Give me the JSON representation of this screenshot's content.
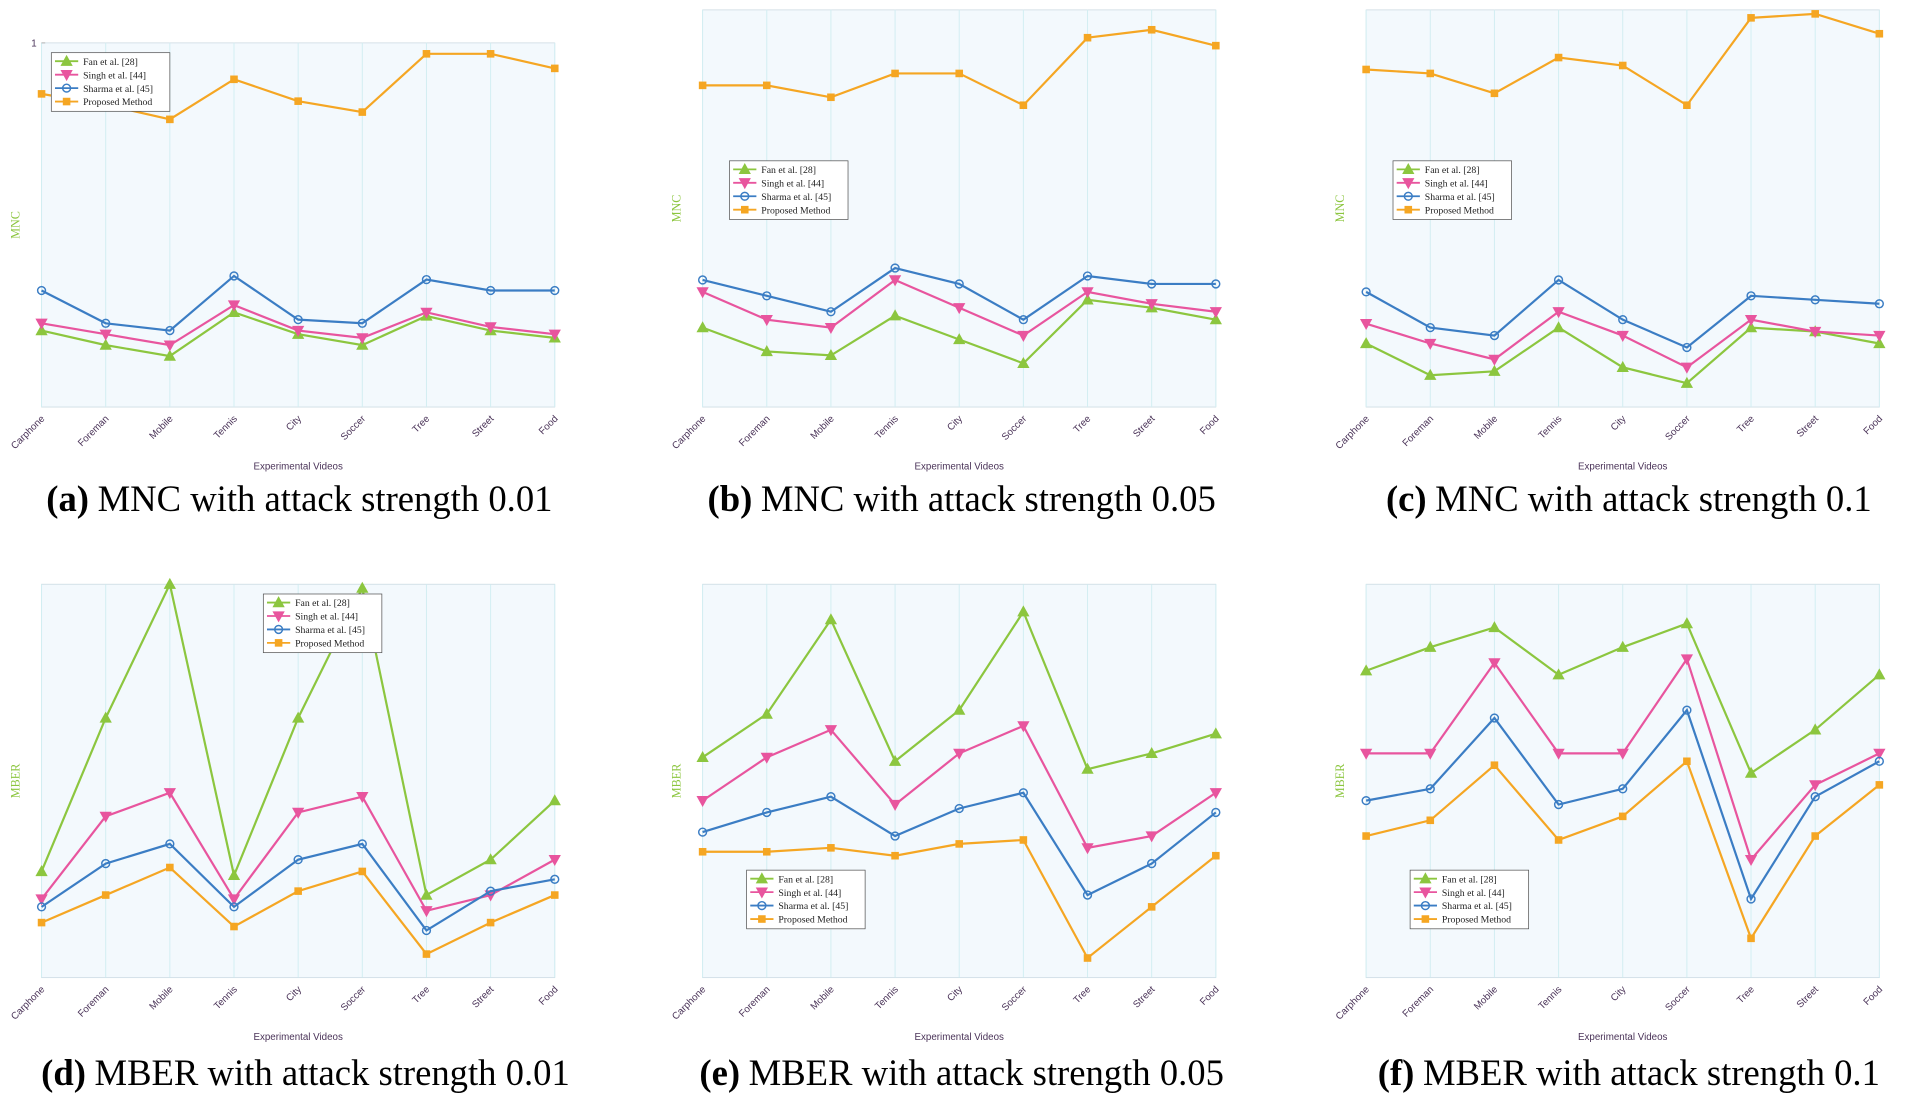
{
  "chart_data": [
    {
      "type": "line",
      "caption_label": "(a)",
      "caption": "MNC with attack strength 0.01",
      "xlabel": "Experimental Videos",
      "ylabel": "MNC",
      "categories": [
        "Carphone",
        "Foreman",
        "Mobile",
        "Tennis",
        "City",
        "Soccer",
        "Tree",
        "Street",
        "Food"
      ],
      "ylim": [
        0,
        1
      ],
      "yticks": [
        1
      ],
      "grid": true,
      "legend": "upper left",
      "series": [
        {
          "name": "Fan et al. [28]",
          "color": "#8cc63f",
          "marker": "triangle-up",
          "values": [
            0.21,
            0.17,
            0.14,
            0.26,
            0.2,
            0.17,
            0.25,
            0.21,
            0.19
          ]
        },
        {
          "name": "Singh et al. [44]",
          "color": "#e8559e",
          "marker": "triangle-down",
          "values": [
            0.23,
            0.2,
            0.17,
            0.28,
            0.21,
            0.19,
            0.26,
            0.22,
            0.2
          ]
        },
        {
          "name": "Sharma et al. [45]",
          "color": "#3b7dc4",
          "marker": "circle",
          "values": [
            0.32,
            0.23,
            0.21,
            0.36,
            0.24,
            0.23,
            0.35,
            0.32,
            0.32
          ]
        },
        {
          "name": "Proposed Method",
          "color": "#f5a623",
          "marker": "square",
          "values": [
            0.86,
            0.83,
            0.79,
            0.9,
            0.84,
            0.81,
            0.97,
            0.97,
            0.93
          ]
        }
      ]
    },
    {
      "type": "line",
      "caption_label": "(b)",
      "caption": "MNC with attack strength 0.05",
      "xlabel": "Experimental Videos",
      "ylabel": "MNC",
      "categories": [
        "Carphone",
        "Foreman",
        "Mobile",
        "Tennis",
        "City",
        "Soccer",
        "Tree",
        "Street",
        "Food"
      ],
      "ylim": [
        0,
        1
      ],
      "yticks": [],
      "grid": true,
      "legend": "center left",
      "series": [
        {
          "name": "Fan et al. [28]",
          "color": "#8cc63f",
          "marker": "triangle-up",
          "values": [
            0.2,
            0.14,
            0.13,
            0.23,
            0.17,
            0.11,
            0.27,
            0.25,
            0.22
          ]
        },
        {
          "name": "Singh et al. [44]",
          "color": "#e8559e",
          "marker": "triangle-down",
          "values": [
            0.29,
            0.22,
            0.2,
            0.32,
            0.25,
            0.18,
            0.29,
            0.26,
            0.24
          ]
        },
        {
          "name": "Sharma et al. [45]",
          "color": "#3b7dc4",
          "marker": "circle",
          "values": [
            0.32,
            0.28,
            0.24,
            0.35,
            0.31,
            0.22,
            0.33,
            0.31,
            0.31
          ]
        },
        {
          "name": "Proposed Method",
          "color": "#f5a623",
          "marker": "square",
          "values": [
            0.81,
            0.81,
            0.78,
            0.84,
            0.84,
            0.76,
            0.93,
            0.95,
            0.91
          ]
        }
      ]
    },
    {
      "type": "line",
      "caption_label": "(c)",
      "caption": "MNC with attack strength 0.1",
      "xlabel": "Experimental Videos",
      "ylabel": "MNC",
      "categories": [
        "Carphone",
        "Foreman",
        "Mobile",
        "Tennis",
        "City",
        "Soccer",
        "Tree",
        "Street",
        "Food"
      ],
      "ylim": [
        0,
        1
      ],
      "yticks": [],
      "grid": true,
      "legend": "center left",
      "series": [
        {
          "name": "Fan et al. [28]",
          "color": "#8cc63f",
          "marker": "triangle-up",
          "values": [
            0.16,
            0.08,
            0.09,
            0.2,
            0.1,
            0.06,
            0.2,
            0.19,
            0.16
          ]
        },
        {
          "name": "Singh et al. [44]",
          "color": "#e8559e",
          "marker": "triangle-down",
          "values": [
            0.21,
            0.16,
            0.12,
            0.24,
            0.18,
            0.1,
            0.22,
            0.19,
            0.18
          ]
        },
        {
          "name": "Sharma et al. [45]",
          "color": "#3b7dc4",
          "marker": "circle",
          "values": [
            0.29,
            0.2,
            0.18,
            0.32,
            0.22,
            0.15,
            0.28,
            0.27,
            0.26
          ]
        },
        {
          "name": "Proposed Method",
          "color": "#f5a623",
          "marker": "square",
          "values": [
            0.85,
            0.84,
            0.79,
            0.88,
            0.86,
            0.76,
            0.98,
            0.99,
            0.94
          ]
        }
      ]
    },
    {
      "type": "line",
      "caption_label": "(d)",
      "caption": "MBER with attack strength 0.01",
      "xlabel": "Experimental Videos",
      "ylabel": "MBER",
      "categories": [
        "Carphone",
        "Foreman",
        "Mobile",
        "Tennis",
        "City",
        "Soccer",
        "Tree",
        "Street",
        "Food"
      ],
      "ylim": [
        0,
        1
      ],
      "yticks": [],
      "grid": true,
      "legend": "upper center",
      "series": [
        {
          "name": "Fan et al. [28]",
          "color": "#8cc63f",
          "marker": "triangle-up",
          "values": [
            0.27,
            0.66,
            1.0,
            0.26,
            0.66,
            0.99,
            0.21,
            0.3,
            0.45
          ]
        },
        {
          "name": "Singh et al. [44]",
          "color": "#e8559e",
          "marker": "triangle-down",
          "values": [
            0.2,
            0.41,
            0.47,
            0.2,
            0.42,
            0.46,
            0.17,
            0.21,
            0.3
          ]
        },
        {
          "name": "Sharma et al. [45]",
          "color": "#3b7dc4",
          "marker": "circle",
          "values": [
            0.18,
            0.29,
            0.34,
            0.18,
            0.3,
            0.34,
            0.12,
            0.22,
            0.25
          ]
        },
        {
          "name": "Proposed Method",
          "color": "#f5a623",
          "marker": "square",
          "values": [
            0.14,
            0.21,
            0.28,
            0.13,
            0.22,
            0.27,
            0.06,
            0.14,
            0.21
          ]
        }
      ]
    },
    {
      "type": "line",
      "caption_label": "(e)",
      "caption": "MBER with attack strength 0.05",
      "xlabel": "Experimental Videos",
      "ylabel": "MBER",
      "categories": [
        "Carphone",
        "Foreman",
        "Mobile",
        "Tennis",
        "City",
        "Soccer",
        "Tree",
        "Street",
        "Food"
      ],
      "ylim": [
        0,
        1
      ],
      "yticks": [],
      "grid": true,
      "legend": "lower left",
      "series": [
        {
          "name": "Fan et al. [28]",
          "color": "#8cc63f",
          "marker": "triangle-up",
          "values": [
            0.56,
            0.67,
            0.91,
            0.55,
            0.68,
            0.93,
            0.53,
            0.57,
            0.62
          ]
        },
        {
          "name": "Singh et al. [44]",
          "color": "#e8559e",
          "marker": "triangle-down",
          "values": [
            0.45,
            0.56,
            0.63,
            0.44,
            0.57,
            0.64,
            0.33,
            0.36,
            0.47
          ]
        },
        {
          "name": "Sharma et al. [45]",
          "color": "#3b7dc4",
          "marker": "circle",
          "values": [
            0.37,
            0.42,
            0.46,
            0.36,
            0.43,
            0.47,
            0.21,
            0.29,
            0.42
          ]
        },
        {
          "name": "Proposed Method",
          "color": "#f5a623",
          "marker": "square",
          "values": [
            0.32,
            0.32,
            0.33,
            0.31,
            0.34,
            0.35,
            0.05,
            0.18,
            0.31
          ]
        }
      ]
    },
    {
      "type": "line",
      "caption_label": "(f)",
      "caption": "MBER with attack strength 0.1",
      "xlabel": "Experimental Videos",
      "ylabel": "MBER",
      "categories": [
        "Carphone",
        "Foreman",
        "Mobile",
        "Tennis",
        "City",
        "Soccer",
        "Tree",
        "Street",
        "Food"
      ],
      "ylim": [
        0,
        1
      ],
      "yticks": [],
      "grid": true,
      "legend": "lower left",
      "series": [
        {
          "name": "Fan et al. [28]",
          "color": "#8cc63f",
          "marker": "triangle-up",
          "values": [
            0.78,
            0.84,
            0.89,
            0.77,
            0.84,
            0.9,
            0.52,
            0.63,
            0.77
          ]
        },
        {
          "name": "Singh et al. [44]",
          "color": "#e8559e",
          "marker": "triangle-down",
          "values": [
            0.57,
            0.57,
            0.8,
            0.57,
            0.57,
            0.81,
            0.3,
            0.49,
            0.57
          ]
        },
        {
          "name": "Sharma et al. [45]",
          "color": "#3b7dc4",
          "marker": "circle",
          "values": [
            0.45,
            0.48,
            0.66,
            0.44,
            0.48,
            0.68,
            0.2,
            0.46,
            0.55
          ]
        },
        {
          "name": "Proposed Method",
          "color": "#f5a623",
          "marker": "square",
          "values": [
            0.36,
            0.4,
            0.54,
            0.35,
            0.41,
            0.55,
            0.1,
            0.36,
            0.49
          ]
        }
      ]
    }
  ]
}
